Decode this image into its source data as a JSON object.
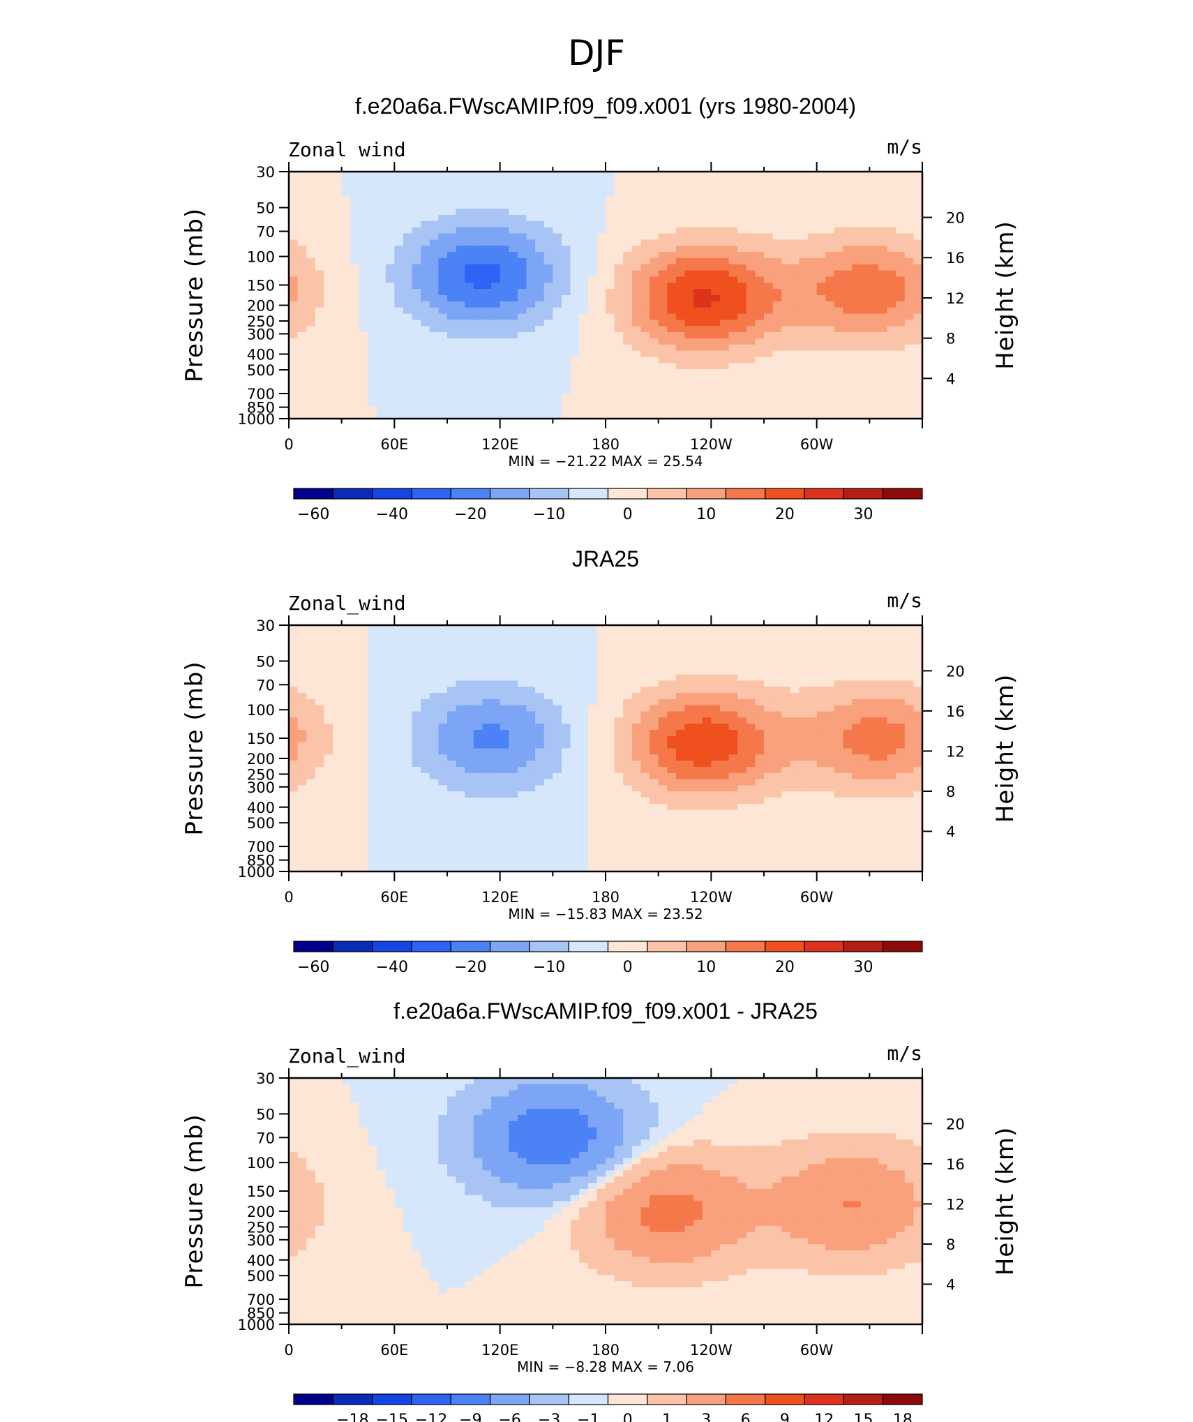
{
  "chart_data": {
    "type": "heatmap",
    "title": "DJF",
    "panels": [
      {
        "title": "f.e20a6a.FWscAMIP.f09_f09.x001 (yrs 1980-2004)",
        "left_label": "Zonal wind",
        "right_label": "m/s",
        "ylabel": "Pressure (mb)",
        "y2label": "Height (km)",
        "minmax": "MIN = −21.22 MAX = 25.54",
        "ylim": [
          1000,
          30
        ],
        "xlim": [
          0,
          360
        ],
        "colorbar": {
          "levels": [
            -60,
            -50,
            -40,
            -30,
            -20,
            -15,
            -10,
            -5,
            0,
            5,
            10,
            15,
            20,
            25,
            30,
            35
          ],
          "labels": [
            "−60",
            "−40",
            "−20",
            "−10",
            "0",
            "10",
            "20",
            "30"
          ],
          "label_at_boundary": [
            0,
            2,
            4,
            6,
            8,
            10,
            12,
            14
          ]
        },
        "features": [
          {
            "kind": "low",
            "lon": 110,
            "p": 130,
            "value": -21.22
          },
          {
            "kind": "high",
            "lon": 235,
            "p": 180,
            "value": 25.54
          },
          {
            "kind": "high",
            "lon": 330,
            "p": 160,
            "value": 18
          }
        ]
      },
      {
        "title": "JRA25",
        "left_label": "Zonal_wind",
        "right_label": "m/s",
        "ylabel": "Pressure (mb)",
        "y2label": "Height (km)",
        "minmax": "MIN = −15.83 MAX = 23.52",
        "ylim": [
          1000,
          30
        ],
        "xlim": [
          0,
          360
        ],
        "colorbar": {
          "levels": [
            -60,
            -50,
            -40,
            -30,
            -20,
            -15,
            -10,
            -5,
            0,
            5,
            10,
            15,
            20,
            25,
            30,
            35
          ],
          "labels": [
            "−60",
            "−40",
            "−20",
            "−10",
            "0",
            "10",
            "20",
            "30"
          ],
          "label_at_boundary": [
            0,
            2,
            4,
            6,
            8,
            10,
            12,
            14
          ]
        },
        "features": [
          {
            "kind": "low",
            "lon": 115,
            "p": 150,
            "value": -15.83
          },
          {
            "kind": "high",
            "lon": 235,
            "p": 160,
            "value": 23.52
          },
          {
            "kind": "high",
            "lon": 335,
            "p": 150,
            "value": 17
          }
        ]
      },
      {
        "title": "f.e20a6a.FWscAMIP.f09_f09.x001 - JRA25",
        "left_label": "Zonal_wind",
        "right_label": "m/s",
        "ylabel": "Pressure (mb)",
        "y2label": "Height (km)",
        "minmax": "MIN = −8.28 MAX = 7.06",
        "ylim": [
          1000,
          30
        ],
        "xlim": [
          0,
          360
        ],
        "colorbar": {
          "levels": [
            -21,
            -18,
            -15,
            -12,
            -9,
            -6,
            -3,
            -1,
            0,
            1,
            3,
            6,
            9,
            12,
            15,
            18
          ],
          "labels": [
            "−18",
            "−15",
            "−12",
            "−9",
            "−6",
            "−3",
            "−1",
            "0",
            "1",
            "3",
            "6",
            "9",
            "12",
            "15",
            "18"
          ],
          "label_at_boundary": [
            1,
            2,
            3,
            4,
            5,
            6,
            7,
            8,
            9,
            10,
            11,
            12,
            13,
            14,
            15
          ]
        },
        "features": [
          {
            "kind": "low",
            "lon": 150,
            "p": 70,
            "value": -8.28
          },
          {
            "kind": "high",
            "lon": 215,
            "p": 200,
            "value": 7.06
          },
          {
            "kind": "high",
            "lon": 320,
            "p": 180,
            "value": 6
          }
        ]
      }
    ],
    "x_ticks": [
      "0",
      "60E",
      "120E",
      "180",
      "120W",
      "60W"
    ],
    "y_ticks": [
      "30",
      "50",
      "70",
      "100",
      "150",
      "200",
      "250",
      "300",
      "400",
      "500",
      "700",
      "850",
      "1000"
    ],
    "y2_ticks": [
      "20",
      "16",
      "12",
      "8",
      "4"
    ],
    "colors": [
      "#00008c",
      "#0a2ab8",
      "#1446e6",
      "#2d64f5",
      "#4b82f5",
      "#7da5f5",
      "#a8c4f5",
      "#d6e6fb",
      "#fde6d5",
      "#fbc4a8",
      "#f9a07d",
      "#f5784b",
      "#f0501e",
      "#dc321e",
      "#b41e14",
      "#8c0a0a"
    ]
  }
}
